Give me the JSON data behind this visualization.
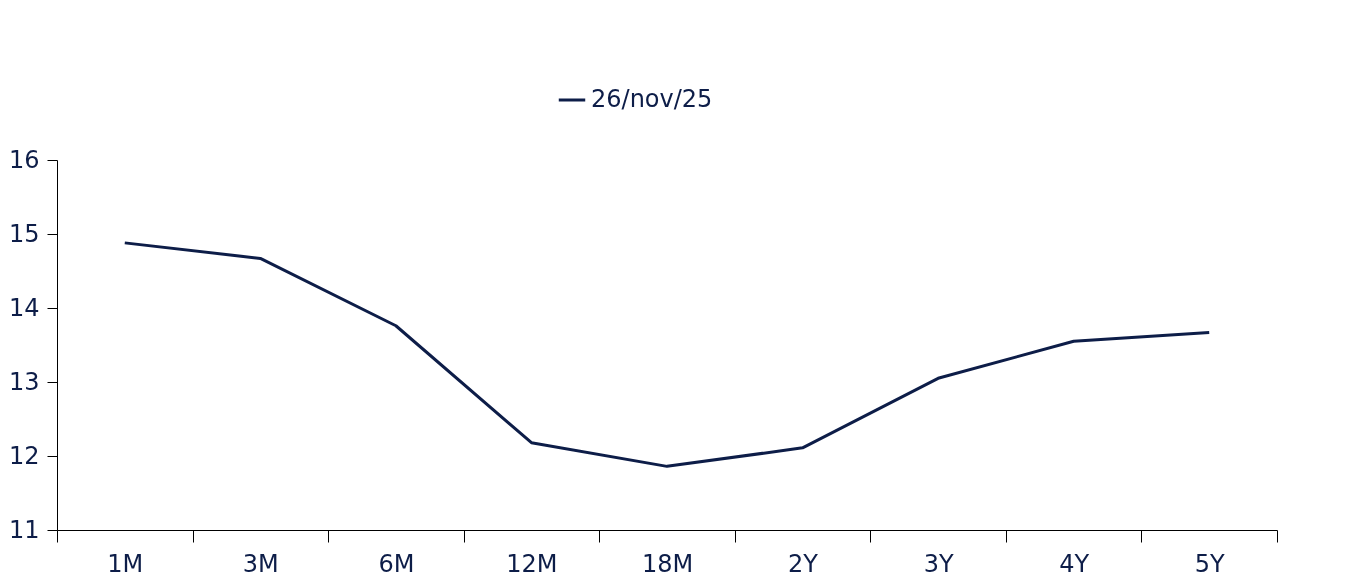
{
  "chart_data": {
    "type": "line",
    "categories": [
      "1M",
      "3M",
      "6M",
      "12M",
      "18M",
      "2Y",
      "3Y",
      "4Y",
      "5Y"
    ],
    "series": [
      {
        "name": "26/nov/25",
        "color": "#0d1d48",
        "values": [
          14.88,
          14.67,
          13.76,
          12.18,
          11.86,
          12.11,
          13.05,
          13.55,
          13.67
        ]
      }
    ],
    "ylim": [
      11,
      16
    ],
    "yticks": [
      11,
      12,
      13,
      14,
      15,
      16
    ],
    "grid": false,
    "legend": "top",
    "marker": "none",
    "line_style": "solid"
  }
}
